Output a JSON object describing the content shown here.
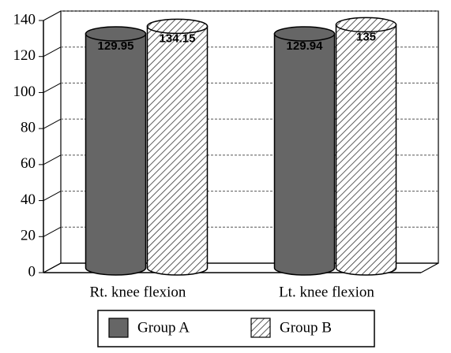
{
  "chart_data": {
    "type": "bar",
    "categories": [
      "Rt. knee flexion",
      "Lt. knee flexion"
    ],
    "series": [
      {
        "name": "Group A",
        "color": "#666666",
        "values": [
          129.95,
          129.94
        ]
      },
      {
        "name": "Group B",
        "color": "#333333",
        "values": [
          134.15,
          135
        ]
      }
    ],
    "ylim": [
      0,
      140
    ],
    "yticks": [
      0,
      20,
      40,
      60,
      80,
      100,
      120,
      140
    ],
    "grid": true
  }
}
